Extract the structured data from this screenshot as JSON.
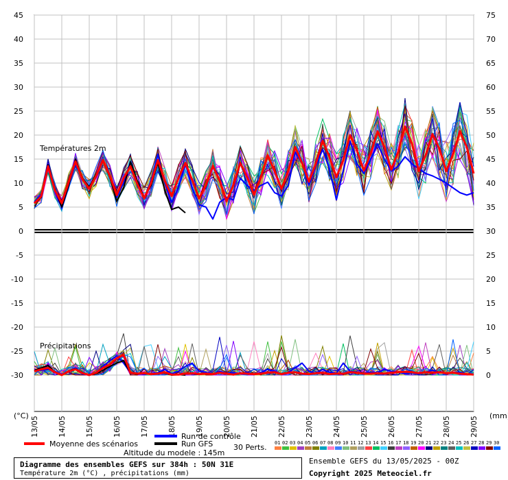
{
  "chart_data": {
    "type": "line",
    "title": "Diagramme des ensembles GEFS sur 384h : 50N 31E",
    "subtitle": "Température 2m (°C) , précipitations (mm)",
    "left_axis": {
      "label": "(°C)",
      "ticks": [
        45,
        40,
        35,
        30,
        25,
        20,
        15,
        10,
        5,
        0,
        -5,
        -10,
        -15,
        -20,
        -25,
        -30
      ]
    },
    "right_axis": {
      "label": "(mm)",
      "ticks": [
        75,
        70,
        65,
        60,
        55,
        50,
        45,
        40,
        35,
        30,
        25,
        20,
        15,
        10,
        5,
        0
      ]
    },
    "x_labels": [
      "13/05",
      "14/05",
      "15/05",
      "16/05",
      "17/05",
      "18/05",
      "19/05",
      "20/05",
      "21/05",
      "22/05",
      "23/05",
      "24/05",
      "25/05",
      "26/05",
      "27/05",
      "28/05",
      "29/05"
    ],
    "panel_labels": {
      "temperature": "Températures 2m",
      "precipitation": "Précipitations"
    },
    "temperature": {
      "mean": [
        5.8,
        7.2,
        13.5,
        8.5,
        5.8,
        10.2,
        14.5,
        10.8,
        8.8,
        11.5,
        14.8,
        11.5,
        7.5,
        11,
        13.5,
        9.8,
        6.8,
        10,
        14.8,
        10.5,
        7.3,
        11,
        14.2,
        10.6,
        6.8,
        9.5,
        13.6,
        10.5,
        6.2,
        9.6,
        14.2,
        11.2,
        7.6,
        11.2,
        15.8,
        12.5,
        8.8,
        12.5,
        17.5,
        14.2,
        10.3,
        14,
        18.8,
        15.4,
        11.2,
        14.8,
        20,
        16.8,
        12.6,
        16.2,
        20.8,
        17.5,
        12.8,
        16.5,
        21.8,
        18.2,
        12.5,
        15.8,
        20.2,
        17.2,
        12.5,
        16,
        20.8,
        17.5,
        12
      ],
      "gfs": [
        5.8,
        7,
        13.8,
        8.8,
        5,
        9.5,
        15,
        11,
        9.2,
        11.8,
        14.6,
        11.2,
        6.2,
        9,
        14.4,
        10.5,
        7,
        9.5,
        14.2,
        8.5,
        4.5,
        5,
        3.8,
        null,
        null,
        null,
        null,
        null,
        null,
        null,
        null,
        null,
        null,
        null,
        null,
        null,
        null,
        null,
        null,
        null,
        null,
        null,
        null,
        null,
        null,
        null,
        null,
        null,
        null,
        null,
        null,
        null,
        null,
        null,
        null,
        null,
        null,
        null,
        null,
        null,
        null,
        null,
        null,
        null,
        null
      ],
      "control": [
        6,
        7.5,
        13.2,
        8.2,
        4.8,
        9.5,
        14,
        11,
        9,
        11.2,
        14.5,
        11.8,
        7,
        10,
        14.5,
        10,
        6.8,
        10.5,
        16,
        10,
        6,
        9,
        14,
        9,
        5.5,
        5,
        2.5,
        6,
        7,
        6.5,
        11,
        9.5,
        8.5,
        9.5,
        10.2,
        8,
        7.3,
        9.5,
        16.5,
        14,
        9.5,
        13.5,
        17,
        13,
        6.5,
        12.5,
        18.8,
        14,
        12,
        15,
        18.2,
        15,
        12.5,
        13.5,
        15.5,
        14,
        13,
        12,
        11.5,
        10.8,
        10,
        9,
        8,
        7.5,
        8
      ]
    },
    "precipitation": {
      "mean": [
        0.8,
        1.2,
        1.5,
        0.6,
        0,
        0.8,
        1.2,
        0.4,
        0,
        0.5,
        1.5,
        2.2,
        3.5,
        4.2,
        0.5,
        0.3,
        0.4,
        0.2,
        0.3,
        0.6,
        0.1,
        0.1,
        0.3,
        0.4,
        0.2,
        0.3,
        0.2,
        0.5,
        0.3,
        0.1,
        0.4,
        0.3,
        0.2,
        0.3,
        0.5,
        0.6,
        0.2,
        0.5,
        0.6,
        0.3,
        0.2,
        0.4,
        0.5,
        0.2,
        0.3,
        0.3,
        0.6,
        0.5,
        0.3,
        0.3,
        0.4,
        0.3,
        0.5,
        0.6,
        0.7,
        0.6,
        0.4,
        0.6,
        0.5,
        0.6,
        0.4,
        0.5,
        0.3,
        0.2,
        0.1
      ],
      "gfs": [
        1,
        1.5,
        2,
        0.6,
        0,
        0.9,
        1.3,
        0.5,
        0,
        0.3,
        1,
        1.8,
        2.5,
        3,
        0.4,
        0.2,
        0.5,
        0.1,
        0.3,
        0.5,
        0,
        0.1,
        0,
        null,
        null,
        null,
        null,
        null,
        null,
        null,
        null,
        null,
        null,
        null,
        null,
        null,
        null,
        null,
        null,
        null,
        null,
        null,
        null,
        null,
        null,
        null,
        null,
        null,
        null,
        null,
        null,
        null,
        null,
        null,
        null,
        null,
        null,
        null,
        null,
        null,
        null,
        null,
        null,
        null,
        null
      ],
      "control": [
        0.8,
        1,
        1.2,
        0.8,
        0,
        0.8,
        1.5,
        0.2,
        0,
        0.6,
        1.8,
        3,
        4,
        2.5,
        0.5,
        0.3,
        0.2,
        0.3,
        0.5,
        1.2,
        0.3,
        0.8,
        1.8,
        2.5,
        0.8,
        0.6,
        0.2,
        0.8,
        0.4,
        0.5,
        0.3,
        0.6,
        0.1,
        0.5,
        1.2,
        0.8,
        0.2,
        0.6,
        1.5,
        2.5,
        0.8,
        0.4,
        1.2,
        0.6,
        0.4,
        2.5,
        0.8,
        0.6,
        0.4,
        0.6,
        0.5,
        1.2,
        0.8,
        0.6,
        0.3,
        0.5,
        0.2,
        0.6,
        1,
        0.6,
        0.3,
        0.5,
        0.6,
        0.2,
        0.1
      ]
    }
  },
  "legend": {
    "mean_label": "Moyenne des scénarios",
    "control_label": "Run de contrôle",
    "gfs_label": "Run GFS",
    "altitude": "Altitude du modele : 145m",
    "perts_label": "30 Perts.",
    "pert_numbers": [
      "01",
      "02",
      "03",
      "04",
      "05",
      "06",
      "07",
      "08",
      "09",
      "10",
      "11",
      "12",
      "13",
      "14",
      "15",
      "16",
      "17",
      "18",
      "19",
      "20",
      "21",
      "22",
      "23",
      "24",
      "25",
      "26",
      "27",
      "28",
      "29",
      "30"
    ],
    "pert_colors": [
      "#ff8040",
      "#40c040",
      "#e0c000",
      "#a040c0",
      "#c08040",
      "#808000",
      "#00a0c0",
      "#ff80c0",
      "#4080ff",
      "#80c080",
      "#b0a060",
      "#a0a0a0",
      "#ff4040",
      "#00c060",
      "#40d0ff",
      "#404040",
      "#c040c0",
      "#9060ff",
      "#c06000",
      "#ff00ff",
      "#000080",
      "#c0a000",
      "#008080",
      "#606060",
      "#00c0c0",
      "#c0c040",
      "#0000c0",
      "#8000ff",
      "#800000",
      "#0060ff"
    ]
  },
  "footer": {
    "title": "Diagramme des ensembles GEFS sur 384h : 50N 31E",
    "subtitle": "Température 2m (°C) , précipitations (mm)",
    "run_info": "Ensemble GEFS du 13/05/2025 - 00Z",
    "copyright": "Copyright 2025 Meteociel.fr"
  },
  "colors": {
    "mean": "#ff0000",
    "control": "#0000ff",
    "gfs": "#000000",
    "grid": "#c0c0c0"
  }
}
